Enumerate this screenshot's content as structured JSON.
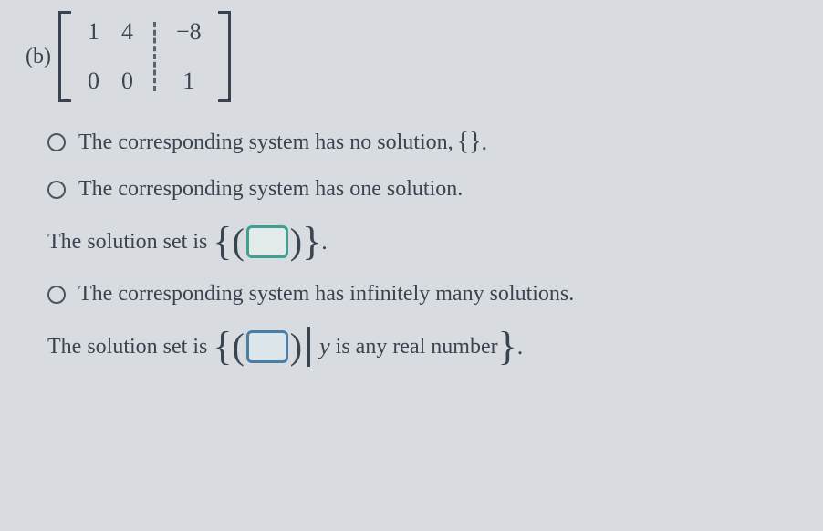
{
  "part_label": "(b)",
  "matrix": {
    "row1": {
      "c1": "1",
      "c2": "4",
      "aug": "−8"
    },
    "row2": {
      "c1": "0",
      "c2": "0",
      "aug": "1"
    }
  },
  "options": {
    "opt1": {
      "text": "The corresponding system has no solution, ",
      "set": "{}",
      "dot": "."
    },
    "opt2": {
      "text": "The corresponding system has one solution."
    },
    "sub2": {
      "lead": "The solution set is ",
      "dot": "."
    },
    "opt3": {
      "text": "The corresponding system has infinitely many solutions."
    },
    "sub3": {
      "lead": "The solution set is ",
      "var": "y",
      "tail": " is any real number",
      "dot": "."
    }
  },
  "colors": {
    "bg": "#d8dce0",
    "text": "#3a4450",
    "input_border_teal": "#419e91",
    "input_border_blue": "#4a7fa3"
  },
  "typography": {
    "body_fontsize": 24,
    "matrix_fontsize": 26,
    "brace_fontsize": 44
  }
}
